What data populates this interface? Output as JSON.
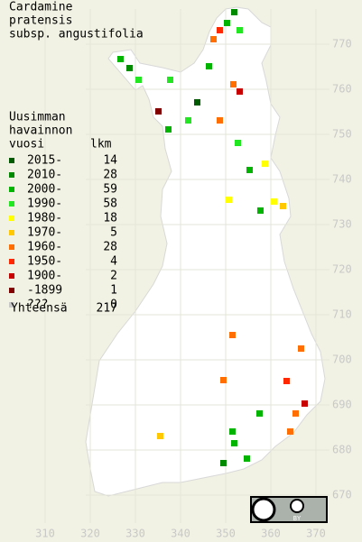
{
  "title": [
    "Cardamine",
    "pratensis",
    "subsp. angustifolia"
  ],
  "legend": {
    "heading": [
      "Uusimman",
      "havainnon",
      "vuosi"
    ],
    "count_heading": "lkm",
    "rows": [
      {
        "label": "2015-",
        "count": 14,
        "color": "#005a00"
      },
      {
        "label": "2010-",
        "count": 28,
        "color": "#008a00"
      },
      {
        "label": "2000-",
        "count": 59,
        "color": "#00b400"
      },
      {
        "label": "1990-",
        "count": 58,
        "color": "#22e622"
      },
      {
        "label": "1980-",
        "count": 18,
        "color": "#ffff00"
      },
      {
        "label": "1970-",
        "count": 5,
        "color": "#ffc800"
      },
      {
        "label": "1960-",
        "count": 28,
        "color": "#ff6e00"
      },
      {
        "label": "1950-",
        "count": 4,
        "color": "#ff2800"
      },
      {
        "label": "1900-",
        "count": 2,
        "color": "#c80000"
      },
      {
        "label": "-1899",
        "count": 1,
        "color": "#820000"
      },
      {
        "label": "???",
        "count": 0,
        "color": "#c8c8c8"
      }
    ],
    "total_label": "Yhteensä",
    "total": 217
  },
  "map": {
    "xticks": [
      310,
      320,
      330,
      340,
      350,
      360,
      370
    ],
    "yticks": [
      670,
      680,
      690,
      700,
      710,
      720,
      730,
      740,
      750,
      760,
      770
    ]
  },
  "license": "BY"
}
